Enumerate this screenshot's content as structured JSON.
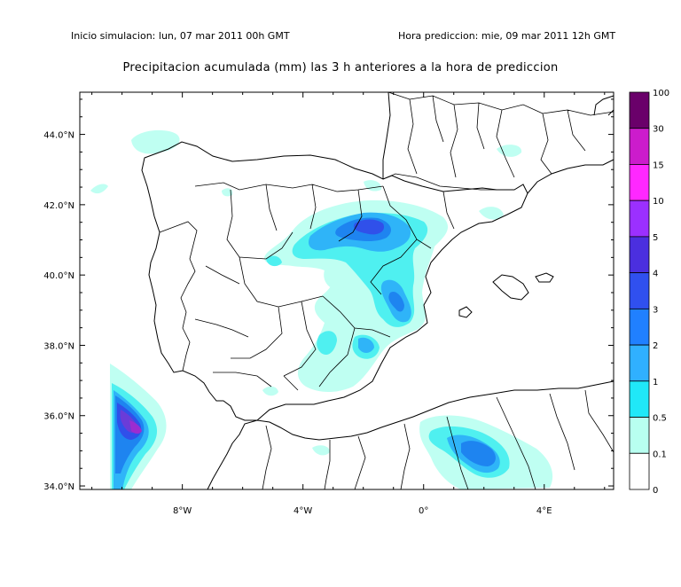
{
  "header": {
    "start_label": "Inicio simulacion: lun, 07 mar 2011 00h GMT",
    "forecast_label": "Hora prediccion: mie, 09 mar 2011 12h GMT"
  },
  "title": "Precipitacion acumulada (mm) las 3 h anteriores a la hora de prediccion",
  "map": {
    "lat_labels": [
      "44.0°N",
      "42.0°N",
      "40.0°N",
      "38.0°N",
      "36.0°N",
      "34.0°N"
    ],
    "lat_values": [
      44,
      42,
      40,
      38,
      36,
      34
    ],
    "lon_labels": [
      "8°W",
      "4°W",
      "0°",
      "4°E"
    ],
    "lon_values": [
      -8,
      -4,
      0,
      4
    ],
    "lon_range": [
      -11.4,
      6.3
    ],
    "lat_range": [
      33.9,
      45.2
    ]
  },
  "legend": {
    "levels": [
      "100",
      "30",
      "15",
      "10",
      "5",
      "4",
      "3",
      "2",
      "1",
      "0.5",
      "0.1",
      "0"
    ],
    "colors": [
      "#6a006a",
      "#cc1ccc",
      "#ff28ff",
      "#9b30ff",
      "#4b2fdf",
      "#3050ef",
      "#2080ff",
      "#30b0ff",
      "#20e8f8",
      "#b8fff0",
      "#ffffff"
    ]
  },
  "colors": {
    "c01": "#bffff2",
    "c05": "#4ff0f0",
    "c1": "#2fb4f8",
    "c2": "#1e84f0",
    "c3": "#3050ea",
    "c4": "#6a3cd8",
    "c5": "#9c2cd0"
  }
}
